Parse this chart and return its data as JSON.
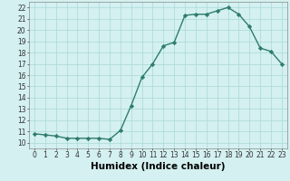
{
  "x": [
    0,
    1,
    2,
    3,
    4,
    5,
    6,
    7,
    8,
    9,
    10,
    11,
    12,
    13,
    14,
    15,
    16,
    17,
    18,
    19,
    20,
    21,
    22,
    23
  ],
  "y": [
    10.8,
    10.7,
    10.6,
    10.4,
    10.4,
    10.4,
    10.4,
    10.3,
    11.1,
    13.3,
    15.8,
    17.0,
    18.6,
    18.9,
    21.3,
    21.4,
    21.4,
    21.7,
    22.0,
    21.4,
    20.3,
    18.4,
    18.1,
    17.0
  ],
  "line_color": "#2e7d6e",
  "marker": "D",
  "markersize": 2.2,
  "linewidth": 1.0,
  "bg_color": "#d4f0f0",
  "grid_color": "#a8d8d8",
  "xlabel": "Humidex (Indice chaleur)",
  "xlim": [
    -0.5,
    23.5
  ],
  "ylim": [
    9.5,
    22.5
  ],
  "yticks": [
    10,
    11,
    12,
    13,
    14,
    15,
    16,
    17,
    18,
    19,
    20,
    21,
    22
  ],
  "xticks": [
    0,
    1,
    2,
    3,
    4,
    5,
    6,
    7,
    8,
    9,
    10,
    11,
    12,
    13,
    14,
    15,
    16,
    17,
    18,
    19,
    20,
    21,
    22,
    23
  ],
  "tick_fontsize": 5.5,
  "xlabel_fontsize": 7.5
}
